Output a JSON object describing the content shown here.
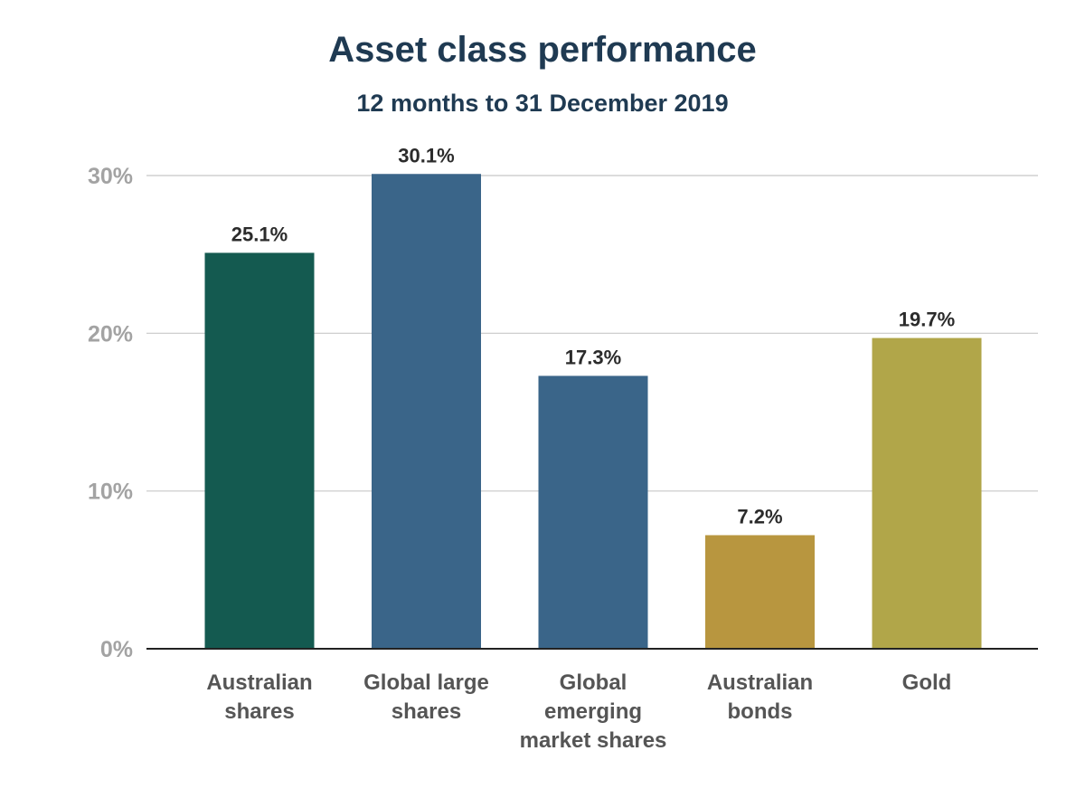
{
  "chart_data": {
    "type": "bar",
    "title": "Asset class performance",
    "subtitle": "12 months to 31 December 2019",
    "categories": [
      [
        "Australian",
        "shares"
      ],
      [
        "Global large",
        "shares"
      ],
      [
        "Global",
        "emerging",
        "market shares"
      ],
      [
        "Australian",
        "bonds"
      ],
      [
        "Gold"
      ]
    ],
    "values": [
      25.1,
      30.1,
      17.3,
      7.2,
      19.7
    ],
    "value_labels": [
      "25.1%",
      "30.1%",
      "17.3%",
      "7.2%",
      "19.7%"
    ],
    "bar_colors": [
      "#145a50",
      "#3a6589",
      "#3a6589",
      "#b8963f",
      "#b1a649"
    ],
    "ylim": [
      0,
      30
    ],
    "yticks": [
      0,
      10,
      20,
      30
    ],
    "ytick_labels": [
      "0%",
      "10%",
      "20%",
      "30%"
    ],
    "grid": true,
    "xlabel": "",
    "ylabel": ""
  }
}
